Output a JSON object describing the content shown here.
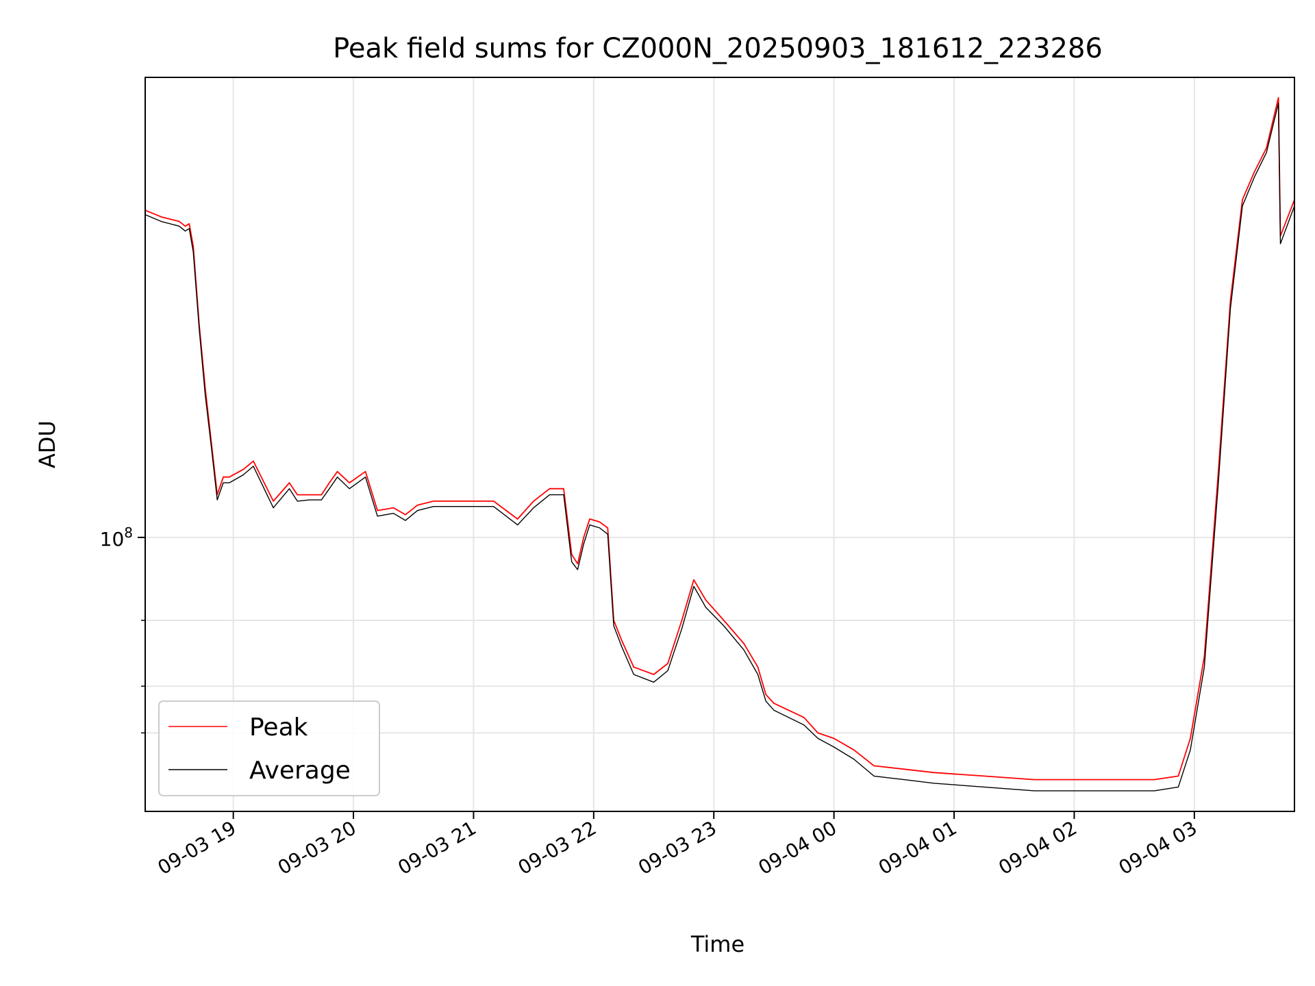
{
  "chart_data": {
    "type": "line",
    "title": "Peak field sums for CZ000N_20250903_181612_223286",
    "xlabel": "Time",
    "ylabel": "ADU",
    "y_scale": "log",
    "grid": true,
    "legend": "lower-left",
    "xlim": [
      "2025-09-03 18:16",
      "2025-09-04 03:50"
    ],
    "ylim": [
      18500000,
      1700000000
    ],
    "x_ticks": [
      {
        "value": "2025-09-03 19:00",
        "label": "09-03 19"
      },
      {
        "value": "2025-09-03 20:00",
        "label": "09-03 20"
      },
      {
        "value": "2025-09-03 21:00",
        "label": "09-03 21"
      },
      {
        "value": "2025-09-03 22:00",
        "label": "09-03 22"
      },
      {
        "value": "2025-09-03 23:00",
        "label": "09-03 23"
      },
      {
        "value": "2025-09-04 00:00",
        "label": "09-04 00"
      },
      {
        "value": "2025-09-04 01:00",
        "label": "09-04 01"
      },
      {
        "value": "2025-09-04 02:00",
        "label": "09-04 02"
      },
      {
        "value": "2025-09-04 03:00",
        "label": "09-04 03"
      }
    ],
    "y_ticks": [
      {
        "value": 100000000,
        "base": "10",
        "exp": "8"
      }
    ],
    "y_minor_ticks": [
      60000000,
      40000000,
      30000000
    ],
    "x": [
      "2025-09-03 18:16",
      "2025-09-03 18:24",
      "2025-09-03 18:33",
      "2025-09-03 18:36",
      "2025-09-03 18:38",
      "2025-09-03 18:40",
      "2025-09-03 18:43",
      "2025-09-03 18:46",
      "2025-09-03 18:49",
      "2025-09-03 18:52",
      "2025-09-03 18:55",
      "2025-09-03 18:58",
      "2025-09-03 19:05",
      "2025-09-03 19:10",
      "2025-09-03 19:20",
      "2025-09-03 19:28",
      "2025-09-03 19:32",
      "2025-09-03 19:38",
      "2025-09-03 19:44",
      "2025-09-03 19:48",
      "2025-09-03 19:52",
      "2025-09-03 19:58",
      "2025-09-03 20:06",
      "2025-09-03 20:12",
      "2025-09-03 20:20",
      "2025-09-03 20:26",
      "2025-09-03 20:32",
      "2025-09-03 20:40",
      "2025-09-03 20:50",
      "2025-09-03 21:00",
      "2025-09-03 21:10",
      "2025-09-03 21:22",
      "2025-09-03 21:30",
      "2025-09-03 21:38",
      "2025-09-03 21:45",
      "2025-09-03 21:49",
      "2025-09-03 21:52",
      "2025-09-03 21:55",
      "2025-09-03 21:58",
      "2025-09-03 22:03",
      "2025-09-03 22:07",
      "2025-09-03 22:10",
      "2025-09-03 22:14",
      "2025-09-03 22:20",
      "2025-09-03 22:30",
      "2025-09-03 22:37",
      "2025-09-03 22:44",
      "2025-09-03 22:50",
      "2025-09-03 22:56",
      "2025-09-03 23:05",
      "2025-09-03 23:15",
      "2025-09-03 23:22",
      "2025-09-03 23:26",
      "2025-09-03 23:30",
      "2025-09-03 23:45",
      "2025-09-03 23:52",
      "2025-09-04 00:00",
      "2025-09-04 00:10",
      "2025-09-04 00:20",
      "2025-09-04 00:35",
      "2025-09-04 00:50",
      "2025-09-04 01:15",
      "2025-09-04 01:40",
      "2025-09-04 02:10",
      "2025-09-04 02:40",
      "2025-09-04 02:52",
      "2025-09-04 02:58",
      "2025-09-04 03:05",
      "2025-09-04 03:12",
      "2025-09-04 03:18",
      "2025-09-04 03:24",
      "2025-09-04 03:30",
      "2025-09-04 03:36",
      "2025-09-04 03:42",
      "2025-09-04 03:43",
      "2025-09-04 03:50"
    ],
    "series": [
      {
        "name": "Peak",
        "color": "#ff0000",
        "values": [
          750000000,
          720000000,
          700000000,
          680000000,
          690000000,
          600000000,
          370000000,
          250000000,
          180000000,
          130000000,
          145000000,
          145000000,
          152000000,
          160000000,
          125000000,
          140000000,
          130000000,
          130000000,
          130000000,
          140000000,
          150000000,
          140000000,
          150000000,
          118000000,
          120000000,
          115000000,
          122000000,
          125000000,
          125000000,
          125000000,
          125000000,
          112000000,
          125000000,
          135000000,
          135000000,
          90000000,
          85000000,
          100000000,
          112000000,
          110000000,
          106000000,
          60000000,
          53000000,
          45000000,
          43000000,
          46000000,
          60000000,
          77000000,
          68000000,
          60000000,
          52000000,
          45000000,
          38000000,
          36000000,
          33000000,
          30000000,
          29000000,
          27000000,
          24500000,
          24000000,
          23500000,
          23000000,
          22500000,
          22500000,
          22500000,
          23000000,
          29000000,
          48000000,
          150000000,
          430000000,
          800000000,
          950000000,
          1100000000,
          1500000000,
          640000000,
          800000000
        ]
      },
      {
        "name": "Average",
        "color": "#000000",
        "values": [
          730000000,
          700000000,
          680000000,
          660000000,
          670000000,
          580000000,
          360000000,
          240000000,
          175000000,
          126000000,
          140000000,
          140000000,
          147000000,
          155000000,
          120000000,
          135000000,
          125000000,
          126000000,
          126000000,
          135000000,
          145000000,
          135000000,
          145000000,
          114000000,
          116000000,
          111000000,
          118000000,
          121000000,
          121000000,
          121000000,
          121000000,
          108000000,
          120000000,
          130000000,
          130000000,
          86000000,
          82000000,
          96000000,
          108000000,
          106000000,
          102000000,
          58000000,
          51000000,
          43000000,
          41000000,
          44000000,
          57000000,
          74000000,
          65000000,
          58000000,
          50000000,
          43000000,
          36500000,
          34500000,
          31500000,
          29000000,
          27500000,
          25500000,
          23000000,
          22500000,
          22000000,
          21500000,
          21000000,
          21000000,
          21000000,
          21500000,
          27000000,
          45000000,
          140000000,
          410000000,
          770000000,
          920000000,
          1070000000,
          1450000000,
          610000000,
          770000000
        ]
      }
    ]
  }
}
